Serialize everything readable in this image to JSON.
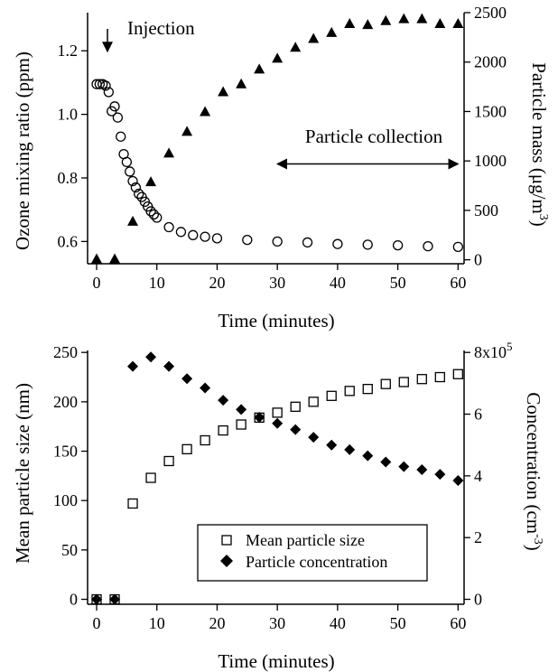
{
  "chart_data": [
    {
      "type": "scatter",
      "xlabel": "Time (minutes)",
      "ylabel_left": "Ozone mixing ratio (ppm)",
      "ylabel_right_base": "Particle mass (μg/m",
      "ylabel_right_sup": "3",
      "ylabel_right_end": ")",
      "xlim": [
        -1.5,
        61
      ],
      "ylim_left": [
        0.53,
        1.32
      ],
      "ylim_right": [
        -40,
        2500
      ],
      "x_ticks": [
        "0",
        "10",
        "20",
        "30",
        "40",
        "50",
        "60"
      ],
      "x_tick_values": [
        0,
        10,
        20,
        30,
        40,
        50,
        60
      ],
      "y_left_ticks": [
        "0.6",
        "0.8",
        "1.0",
        "1.2"
      ],
      "y_left_tick_values": [
        0.6,
        0.8,
        1.0,
        1.2
      ],
      "y_right_ticks": [
        "0",
        "500",
        "1000",
        "1500",
        "2000",
        "2500"
      ],
      "y_right_tick_values": [
        0,
        500,
        1000,
        1500,
        2000,
        2500
      ],
      "annotations": {
        "injection": {
          "text": "Injection",
          "x": 1.8
        },
        "collection": {
          "text": "Particle collection",
          "x_start": 30,
          "x_end": 60,
          "y_right": 970
        }
      },
      "series": [
        {
          "marker": "open-circle",
          "axis": "left",
          "x": [
            0,
            0.5,
            1,
            1.5,
            2,
            2.5,
            3,
            3.5,
            4,
            4.5,
            5,
            5.5,
            6,
            6.5,
            7,
            7.5,
            8,
            8.5,
            9,
            9.5,
            10,
            12,
            14,
            16,
            18,
            20,
            25,
            30,
            35,
            40,
            45,
            50,
            55,
            60
          ],
          "y": [
            1.095,
            1.095,
            1.095,
            1.09,
            1.07,
            1.01,
            1.025,
            0.99,
            0.93,
            0.875,
            0.85,
            0.82,
            0.79,
            0.77,
            0.75,
            0.74,
            0.725,
            0.71,
            0.695,
            0.685,
            0.675,
            0.645,
            0.63,
            0.62,
            0.615,
            0.61,
            0.605,
            0.6,
            0.597,
            0.592,
            0.59,
            0.588,
            0.585,
            0.583
          ]
        },
        {
          "marker": "filled-triangle",
          "axis": "right",
          "x": [
            0,
            3,
            6,
            9,
            12,
            15,
            18,
            21,
            24,
            27,
            30,
            33,
            36,
            39,
            42,
            45,
            48,
            51,
            54,
            57,
            60
          ],
          "y": [
            10,
            10,
            390,
            790,
            1080,
            1300,
            1500,
            1700,
            1780,
            1930,
            2040,
            2150,
            2240,
            2300,
            2390,
            2380,
            2420,
            2440,
            2440,
            2390,
            2390
          ]
        }
      ]
    },
    {
      "type": "scatter",
      "xlabel": "Time (minutes)",
      "ylabel_left": "Mean particle size (nm)",
      "ylabel_right_base": "Concentration (cm",
      "ylabel_right_sup": "-3",
      "ylabel_right_end": ")",
      "xlim": [
        -1.5,
        61
      ],
      "ylim_left": [
        -5,
        252
      ],
      "ylim_right": [
        -16000,
        806400
      ],
      "x_ticks": [
        "0",
        "10",
        "20",
        "30",
        "40",
        "50",
        "60"
      ],
      "x_tick_values": [
        0,
        10,
        20,
        30,
        40,
        50,
        60
      ],
      "y_left_ticks": [
        "0",
        "50",
        "100",
        "150",
        "200",
        "250"
      ],
      "y_left_tick_values": [
        0,
        50,
        100,
        150,
        200,
        250
      ],
      "y_right_ticks": [
        "0",
        "2",
        "4",
        "6",
        "8x10"
      ],
      "y_right_tick_sup": [
        "",
        "",
        "",
        "",
        "5"
      ],
      "y_right_tick_values": [
        0,
        200000,
        400000,
        600000,
        800000
      ],
      "legend": {
        "placement": "bottom-right",
        "entries": [
          "Mean particle size",
          "Particle concentration"
        ]
      },
      "series": [
        {
          "name": "Mean particle size",
          "marker": "open-square",
          "axis": "left",
          "x": [
            0,
            3,
            6,
            9,
            12,
            15,
            18,
            21,
            24,
            27,
            30,
            33,
            36,
            39,
            42,
            45,
            48,
            51,
            54,
            57,
            60
          ],
          "y": [
            0,
            0,
            97,
            123,
            140,
            152,
            161,
            171,
            177,
            184,
            189,
            195,
            200,
            206,
            211,
            213,
            218,
            220,
            223,
            225,
            228
          ]
        },
        {
          "name": "Particle concentration",
          "marker": "filled-diamond",
          "axis": "right",
          "x": [
            0,
            3,
            6,
            9,
            12,
            15,
            18,
            21,
            24,
            27,
            30,
            33,
            36,
            39,
            42,
            45,
            48,
            51,
            54,
            57,
            60
          ],
          "y": [
            0,
            0,
            755000,
            785000,
            755000,
            715000,
            685000,
            645000,
            615000,
            590000,
            570000,
            550000,
            525000,
            500000,
            485000,
            465000,
            445000,
            430000,
            420000,
            405000,
            385000
          ]
        }
      ]
    }
  ]
}
